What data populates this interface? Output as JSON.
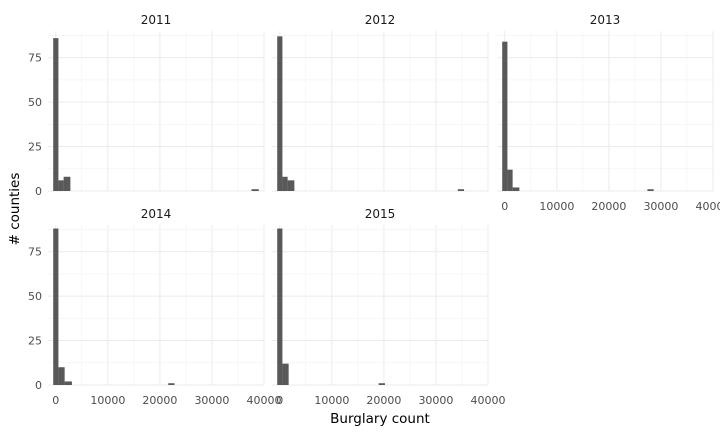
{
  "chart_data": {
    "type": "histogram",
    "xlabel": "Burglary count",
    "ylabel": "# counties",
    "xlim": [
      -1500,
      40000
    ],
    "ylim": [
      0,
      90
    ],
    "x_ticks": [
      0,
      10000,
      20000,
      30000,
      40000
    ],
    "y_ticks": [
      0,
      25,
      50,
      75
    ],
    "grid": true,
    "bar_color": "#595959",
    "panels": [
      {
        "title": "2011",
        "bins": [
          {
            "start": -500,
            "end": 500,
            "count": 86
          },
          {
            "start": 500,
            "end": 1500,
            "count": 6
          },
          {
            "start": 1500,
            "end": 2800,
            "count": 8
          },
          {
            "start": 37600,
            "end": 39000,
            "count": 1
          }
        ]
      },
      {
        "title": "2012",
        "bins": [
          {
            "start": -500,
            "end": 500,
            "count": 87
          },
          {
            "start": 500,
            "end": 1500,
            "count": 8
          },
          {
            "start": 1500,
            "end": 2800,
            "count": 6
          },
          {
            "start": 34200,
            "end": 35400,
            "count": 1
          }
        ]
      },
      {
        "title": "2013",
        "bins": [
          {
            "start": -500,
            "end": 500,
            "count": 84
          },
          {
            "start": 500,
            "end": 1500,
            "count": 12
          },
          {
            "start": 1500,
            "end": 2800,
            "count": 2
          },
          {
            "start": 27400,
            "end": 28600,
            "count": 1
          }
        ]
      },
      {
        "title": "2014",
        "bins": [
          {
            "start": -500,
            "end": 500,
            "count": 88
          },
          {
            "start": 500,
            "end": 1700,
            "count": 10
          },
          {
            "start": 1700,
            "end": 3100,
            "count": 2
          },
          {
            "start": 21600,
            "end": 22800,
            "count": 1
          }
        ]
      },
      {
        "title": "2015",
        "bins": [
          {
            "start": -500,
            "end": 500,
            "count": 88
          },
          {
            "start": 500,
            "end": 1700,
            "count": 12
          },
          {
            "start": 19000,
            "end": 20200,
            "count": 1
          }
        ]
      }
    ]
  }
}
